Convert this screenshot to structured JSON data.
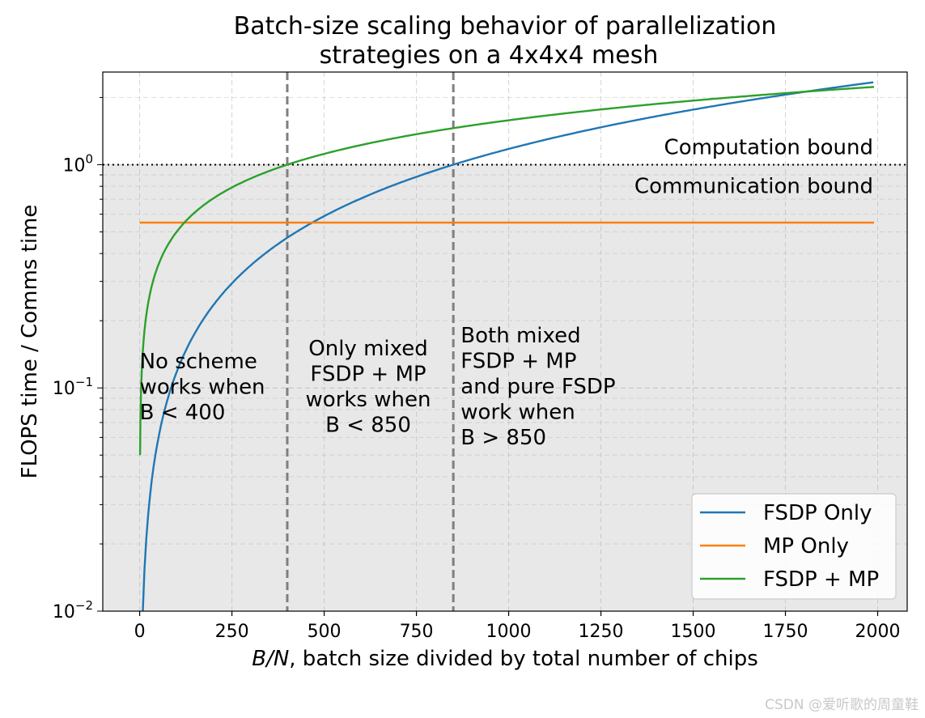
{
  "chart_data": {
    "type": "line",
    "title": [
      "Batch-size scaling behavior of parallelization",
      "strategies on a 4x4x4 mesh"
    ],
    "xlabel_var": "B/N",
    "xlabel_rest": ", batch size divided by total number of chips",
    "ylabel": "FLOPS time / Comms time",
    "xscale": "linear",
    "yscale": "log",
    "xlim": [
      -100,
      2080
    ],
    "ylim": [
      0.01,
      2.6
    ],
    "xticks": [
      0,
      250,
      500,
      750,
      1000,
      1250,
      1500,
      1750,
      2000
    ],
    "yticks": [
      {
        "value": 1.0,
        "base": "10",
        "exp": "0"
      },
      {
        "value": 0.1,
        "base": "10",
        "exp": "−1"
      },
      {
        "value": 0.01,
        "base": "10",
        "exp": "−2"
      }
    ],
    "grid": true,
    "threshold": {
      "value": 1.0,
      "label_above": "Computation bound",
      "label_below": "Communication bound"
    },
    "vlines": [
      400,
      850
    ],
    "annotations": [
      {
        "x": 0,
        "align": "start",
        "lines": [
          "No scheme",
          "works when",
          "B < 400"
        ]
      },
      {
        "x": 620,
        "align": "middle",
        "lines": [
          "Only mixed",
          "FSDP + MP",
          "works when",
          "B < 850"
        ]
      },
      {
        "x": 870,
        "align": "start",
        "lines": [
          "Both mixed",
          "FSDP + MP",
          "and pure FSDP",
          "work when",
          "B > 850"
        ]
      }
    ],
    "series": [
      {
        "name": "FSDP Only",
        "color": "#1f77b4",
        "formula": "x/850",
        "x": [
          10,
          20,
          50,
          100,
          200,
          300,
          400,
          500,
          600,
          700,
          850,
          1000,
          1250,
          1500,
          1750,
          2000
        ],
        "y": [
          0.0118,
          0.0235,
          0.0588,
          0.1176,
          0.2353,
          0.3529,
          0.4706,
          0.5882,
          0.7059,
          0.8235,
          1.0,
          1.1765,
          1.4706,
          1.7647,
          2.0588,
          2.3529
        ]
      },
      {
        "name": "MP Only",
        "color": "#ff7f0e",
        "formula": "constant",
        "x": [
          0,
          2000
        ],
        "y": [
          0.55,
          0.55
        ]
      },
      {
        "name": "FSDP + MP",
        "color": "#2ca02c",
        "formula": "sqrt(x/400)",
        "x": [
          1,
          5,
          10,
          25,
          50,
          100,
          200,
          300,
          400,
          600,
          850,
          1000,
          1250,
          1500,
          1750,
          2000
        ],
        "y": [
          0.05,
          0.1118,
          0.1581,
          0.25,
          0.3536,
          0.5,
          0.7071,
          0.866,
          1.0,
          1.2247,
          1.4577,
          1.5811,
          1.7678,
          1.9365,
          2.0917,
          2.2361
        ]
      }
    ],
    "legend_position": "lower-right"
  },
  "watermark": "CSDN @爱听歌的周童鞋"
}
